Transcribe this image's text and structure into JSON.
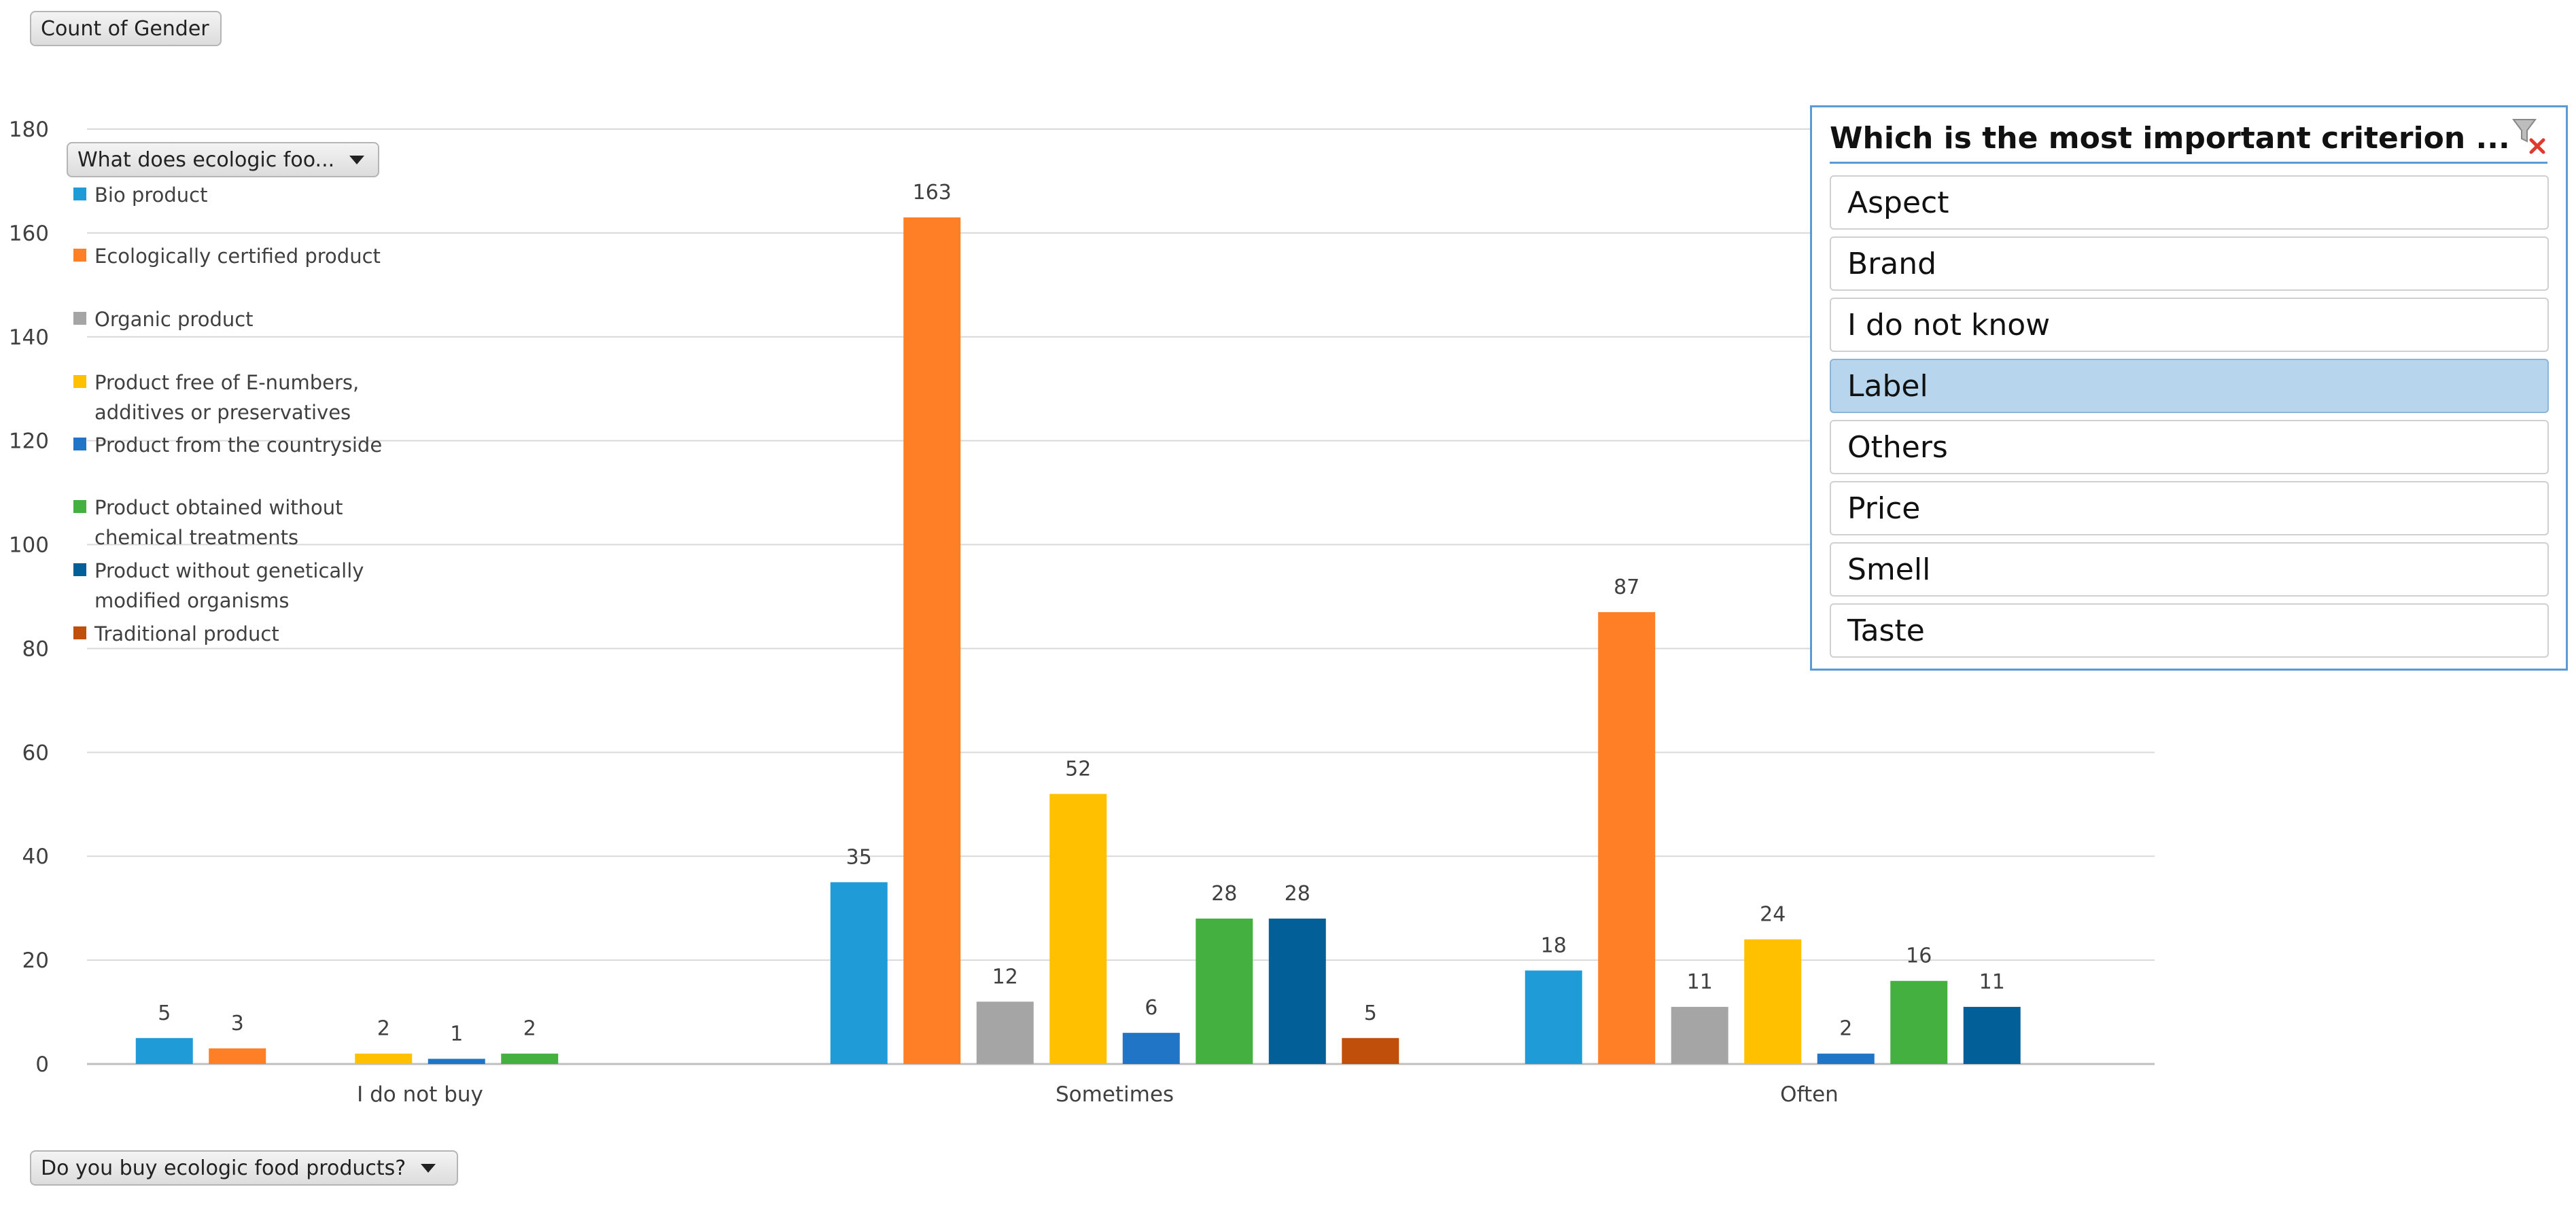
{
  "pivot_buttons": {
    "values_field": "Count of Gender",
    "legend_field": "What does ecologic foo...",
    "axis_field": "Do you buy ecologic food products?"
  },
  "slicer": {
    "title": "Which is the most important criterion ...",
    "items": [
      {
        "label": "Aspect",
        "selected": false
      },
      {
        "label": "Brand",
        "selected": false
      },
      {
        "label": "I do not know",
        "selected": false
      },
      {
        "label": "Label",
        "selected": true
      },
      {
        "label": "Others",
        "selected": false
      },
      {
        "label": "Price",
        "selected": false
      },
      {
        "label": "Smell",
        "selected": false
      },
      {
        "label": "Taste",
        "selected": false
      }
    ],
    "accent_color": "#5b9bd5",
    "selected_color": "#b7d6ee",
    "clear_icon": "clear-filter-icon"
  },
  "chart_data": {
    "type": "bar",
    "title": "",
    "xlabel": "",
    "ylabel": "",
    "ylim": [
      0,
      180
    ],
    "yticks": [
      0,
      20,
      40,
      60,
      80,
      100,
      120,
      140,
      160,
      180
    ],
    "grid": true,
    "legend_position": "top-left",
    "categories": [
      "I do not buy",
      "Sometimes",
      "Often"
    ],
    "series": [
      {
        "name": "Bio product",
        "color": "#1f9bd8",
        "values": [
          5,
          35,
          18
        ]
      },
      {
        "name": "Ecologically certified product",
        "color": "#ff7f27",
        "values": [
          3,
          163,
          87
        ]
      },
      {
        "name": "Organic product",
        "color": "#a5a5a5",
        "values": [
          null,
          12,
          11
        ]
      },
      {
        "name": "Product free of E-numbers, additives or preservatives",
        "color": "#ffc000",
        "values": [
          2,
          52,
          24
        ]
      },
      {
        "name": "Product from the countryside",
        "color": "#2075c7",
        "values": [
          1,
          6,
          2
        ]
      },
      {
        "name": "Product obtained without chemical treatments",
        "color": "#44b040",
        "values": [
          2,
          28,
          16
        ]
      },
      {
        "name": "Product without genetically modified organisms",
        "color": "#035f97",
        "values": [
          null,
          28,
          11
        ]
      },
      {
        "name": "Traditional product",
        "color": "#c04f0c",
        "values": [
          null,
          5,
          null
        ]
      }
    ]
  }
}
